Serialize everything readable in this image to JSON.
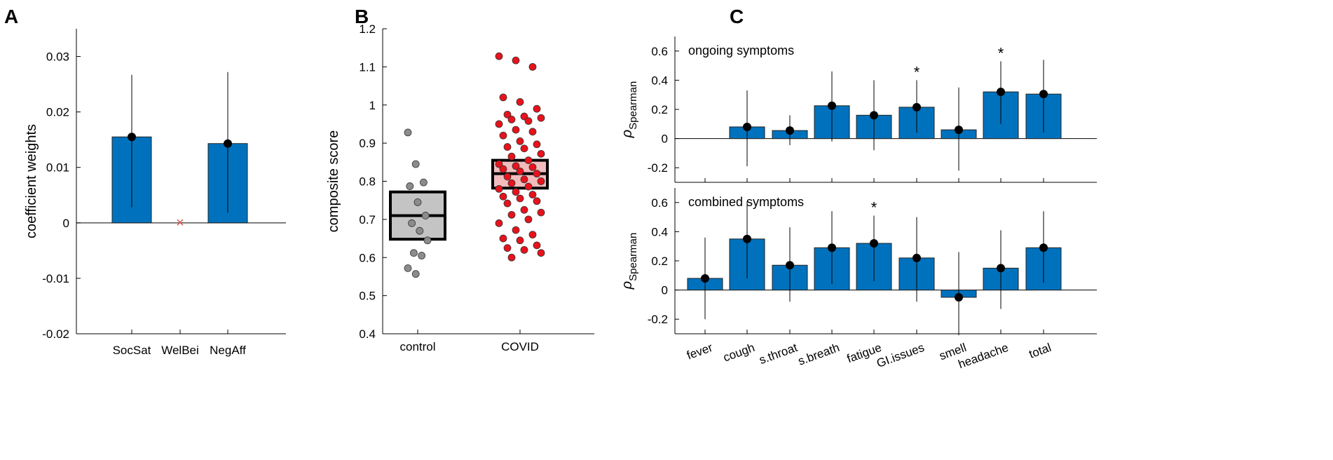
{
  "panels": {
    "a": "A",
    "b": "B",
    "c": "C"
  },
  "chart_data": [
    {
      "type": "bar",
      "panel": "A",
      "ylabel": "coefficient weights",
      "ylim": [
        -0.02,
        0.035
      ],
      "yticks": [
        -0.02,
        -0.01,
        0,
        0.01,
        0.02,
        0.03
      ],
      "ytick_labels": [
        "-0.02",
        "-0.01",
        "0",
        "0.01",
        "0.02",
        "0.03"
      ],
      "categories": [
        "SocSat",
        "WelBei",
        "NegAff"
      ],
      "values": [
        0.0155,
        null,
        0.0143
      ],
      "ci_low": [
        0.0028,
        null,
        0.0018
      ],
      "ci_high": [
        0.0267,
        null,
        0.0272
      ],
      "excluded_marker": "×",
      "bar_color": "#0072BD",
      "excluded_color": "#d9534f"
    },
    {
      "type": "scatter",
      "panel": "B",
      "ylabel": "composite score",
      "ylim": [
        0.4,
        1.2
      ],
      "yticks": [
        0.4,
        0.5,
        0.6,
        0.7,
        0.8,
        0.9,
        1.0,
        1.1,
        1.2
      ],
      "ytick_labels": [
        "0.4",
        "0.5",
        "0.6",
        "0.7",
        "0.8",
        "0.9",
        "1",
        "1.1",
        "1.2"
      ],
      "categories": [
        "control",
        "COVID"
      ],
      "groups": [
        {
          "name": "control",
          "median": 0.71,
          "q1": 0.648,
          "q3": 0.772,
          "points": [
            0.928,
            0.845,
            0.797,
            0.787,
            0.745,
            0.71,
            0.69,
            0.67,
            0.645,
            0.612,
            0.605,
            0.572,
            0.557
          ],
          "box_color": "#c4c4c4",
          "point_color": "#8c8c8c"
        },
        {
          "name": "COVID",
          "median": 0.82,
          "q1": 0.782,
          "q3": 0.855,
          "points": [
            1.128,
            1.117,
            1.1,
            1.02,
            1.008,
            0.99,
            0.975,
            0.97,
            0.966,
            0.962,
            0.958,
            0.95,
            0.935,
            0.93,
            0.92,
            0.905,
            0.897,
            0.89,
            0.886,
            0.872,
            0.865,
            0.855,
            0.845,
            0.84,
            0.837,
            0.832,
            0.826,
            0.82,
            0.812,
            0.805,
            0.8,
            0.795,
            0.786,
            0.78,
            0.772,
            0.765,
            0.76,
            0.755,
            0.748,
            0.742,
            0.725,
            0.718,
            0.712,
            0.7,
            0.69,
            0.672,
            0.66,
            0.65,
            0.645,
            0.632,
            0.625,
            0.62,
            0.612,
            0.6
          ],
          "box_color": "#f2bcbc",
          "point_color": "#e8121c"
        }
      ]
    },
    {
      "type": "bar",
      "panel": "C",
      "title": "ongoing symptoms",
      "ylabel": "ρ",
      "ylabel_subscript": "Spearman",
      "ylim": [
        -0.3,
        0.7
      ],
      "yticks": [
        -0.2,
        0,
        0.2,
        0.4,
        0.6
      ],
      "ytick_labels": [
        "-0.2",
        "0",
        "0.2",
        "0.4",
        "0.6"
      ],
      "categories": [
        "fever",
        "cough",
        "s.throat",
        "s.breath",
        "fatigue",
        "GI.issues",
        "smell",
        "headache",
        "total"
      ],
      "values": [
        null,
        0.08,
        0.055,
        0.225,
        0.16,
        0.215,
        0.06,
        0.32,
        0.305
      ],
      "ci_low": [
        null,
        -0.19,
        -0.045,
        -0.02,
        -0.08,
        0.04,
        -0.22,
        0.1,
        0.04
      ],
      "ci_high": [
        null,
        0.33,
        0.16,
        0.46,
        0.4,
        0.4,
        0.35,
        0.53,
        0.54
      ],
      "significance": [
        "",
        "",
        "",
        "",
        "",
        "*",
        "",
        "*",
        ""
      ],
      "bar_color": "#0072BD"
    },
    {
      "type": "bar",
      "panel": "C",
      "title": "combined symptoms",
      "ylabel": "ρ",
      "ylabel_subscript": "Spearman",
      "ylim": [
        -0.3,
        0.7
      ],
      "yticks": [
        -0.2,
        0,
        0.2,
        0.4,
        0.6
      ],
      "ytick_labels": [
        "-0.2",
        "0",
        "0.2",
        "0.4",
        "0.6"
      ],
      "categories": [
        "fever",
        "cough",
        "s.throat",
        "s.breath",
        "fatigue",
        "GI.issues",
        "smell",
        "headache",
        "total"
      ],
      "values": [
        0.08,
        0.35,
        0.17,
        0.29,
        0.32,
        0.22,
        -0.05,
        0.15,
        0.29
      ],
      "ci_low": [
        -0.2,
        0.08,
        -0.08,
        0.04,
        0.06,
        -0.08,
        -0.31,
        -0.13,
        0.05
      ],
      "ci_high": [
        0.36,
        0.61,
        0.43,
        0.54,
        0.51,
        0.5,
        0.26,
        0.41,
        0.54
      ],
      "significance": [
        "",
        "",
        "",
        "",
        "*",
        "",
        "",
        "",
        ""
      ],
      "bar_color": "#0072BD"
    }
  ]
}
